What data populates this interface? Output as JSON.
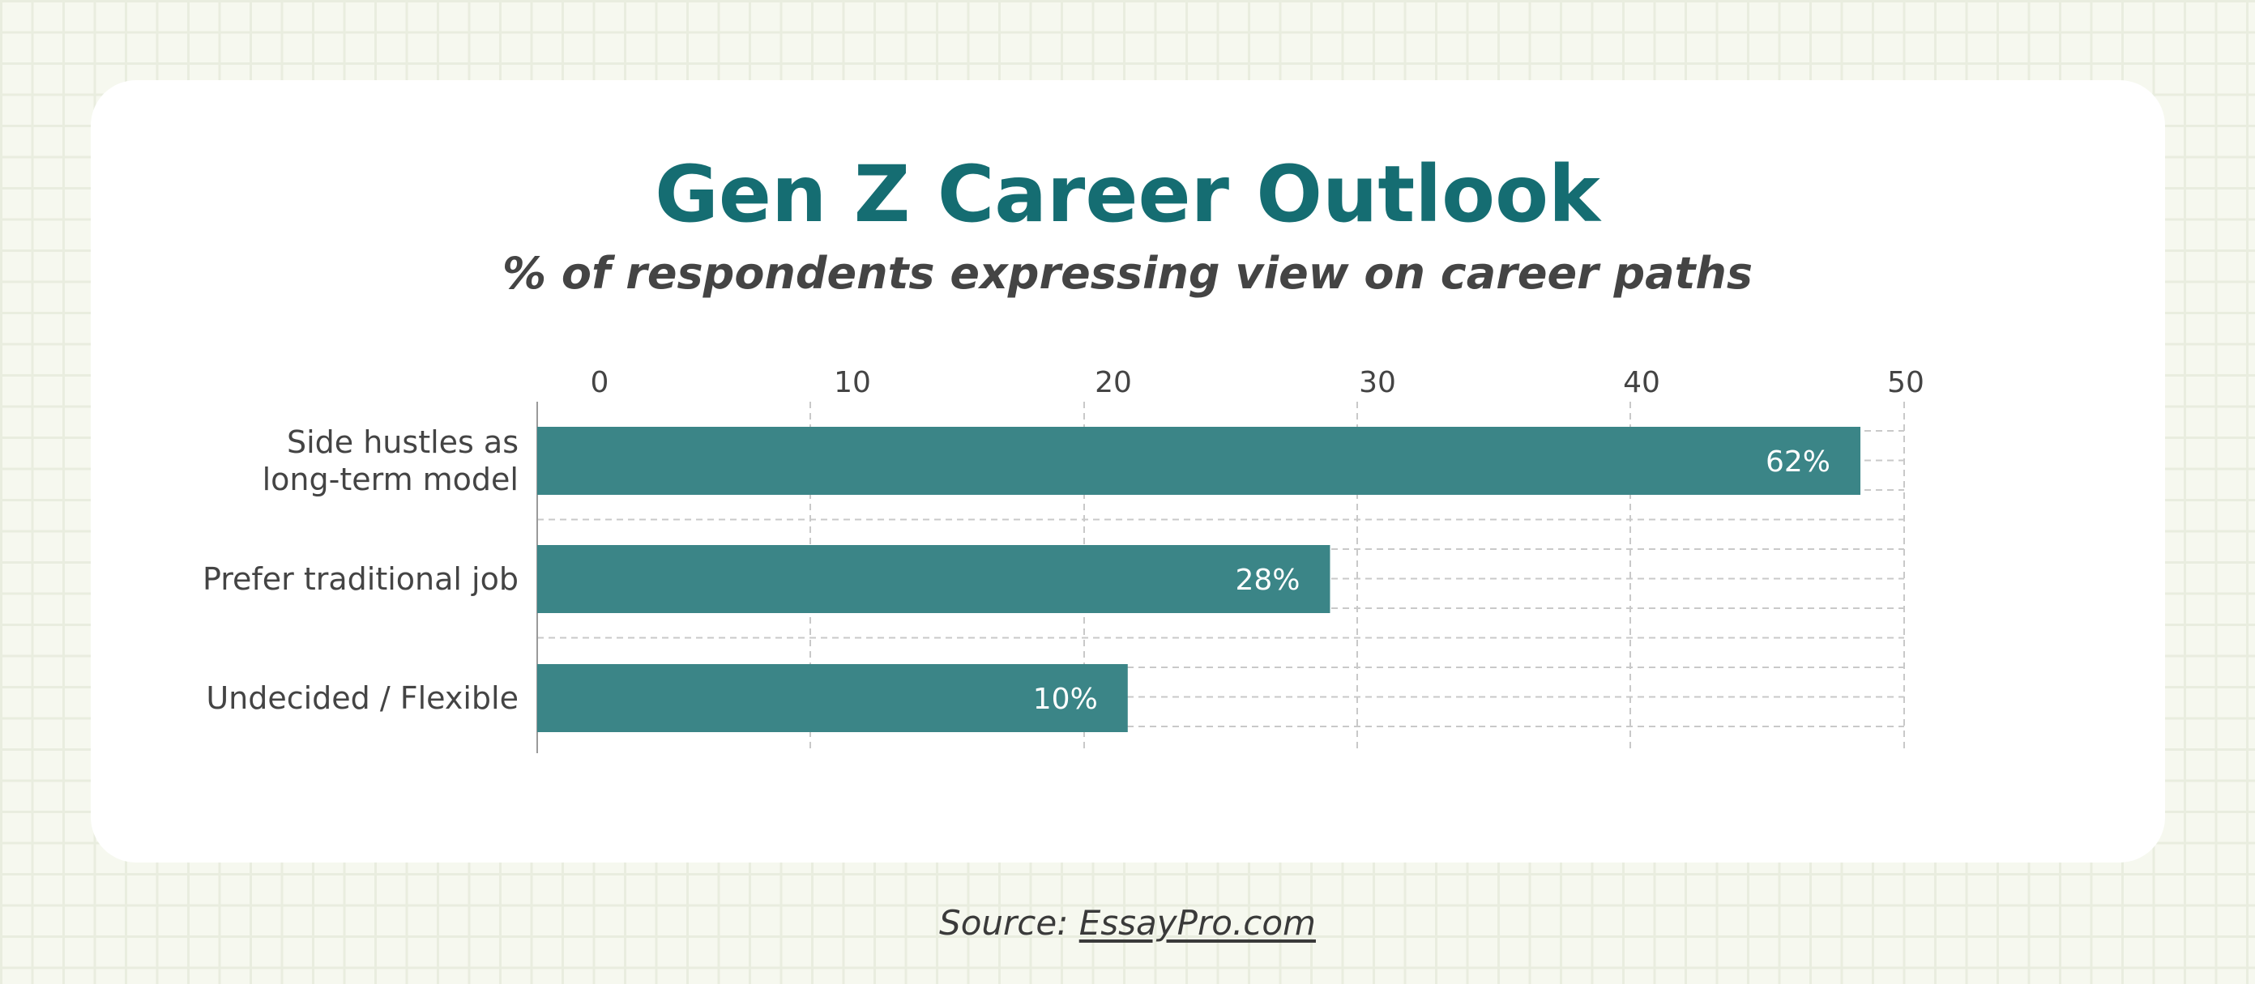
{
  "title": "Gen Z Career Outlook",
  "subtitle": "% of respondents expressing view on career paths",
  "source": {
    "prefix": "Source:",
    "link_text": "EssayPro.com"
  },
  "colors": {
    "title": "#156d72",
    "bar": "#3b8587",
    "bar_label": "#ffffff",
    "grid": "#c9c9c9",
    "axis_text": "#444444",
    "background": "#f6f8ef"
  },
  "chart_data": {
    "type": "bar",
    "orientation": "horizontal",
    "categories": [
      [
        "Side hustles as",
        "long-term model"
      ],
      [
        "Prefer traditional job"
      ],
      [
        "Undecided / Flexible"
      ]
    ],
    "values": [
      62,
      28,
      10
    ],
    "bar_lengths": [
      48.4,
      29.0,
      21.6
    ],
    "data_labels": [
      "62%",
      "28%",
      "10%"
    ],
    "xticks": [
      "0",
      "10",
      "20",
      "30",
      "40",
      "50"
    ],
    "xlim": [
      0,
      50
    ],
    "xaxis_position": "top",
    "grid": true,
    "legend": false
  }
}
